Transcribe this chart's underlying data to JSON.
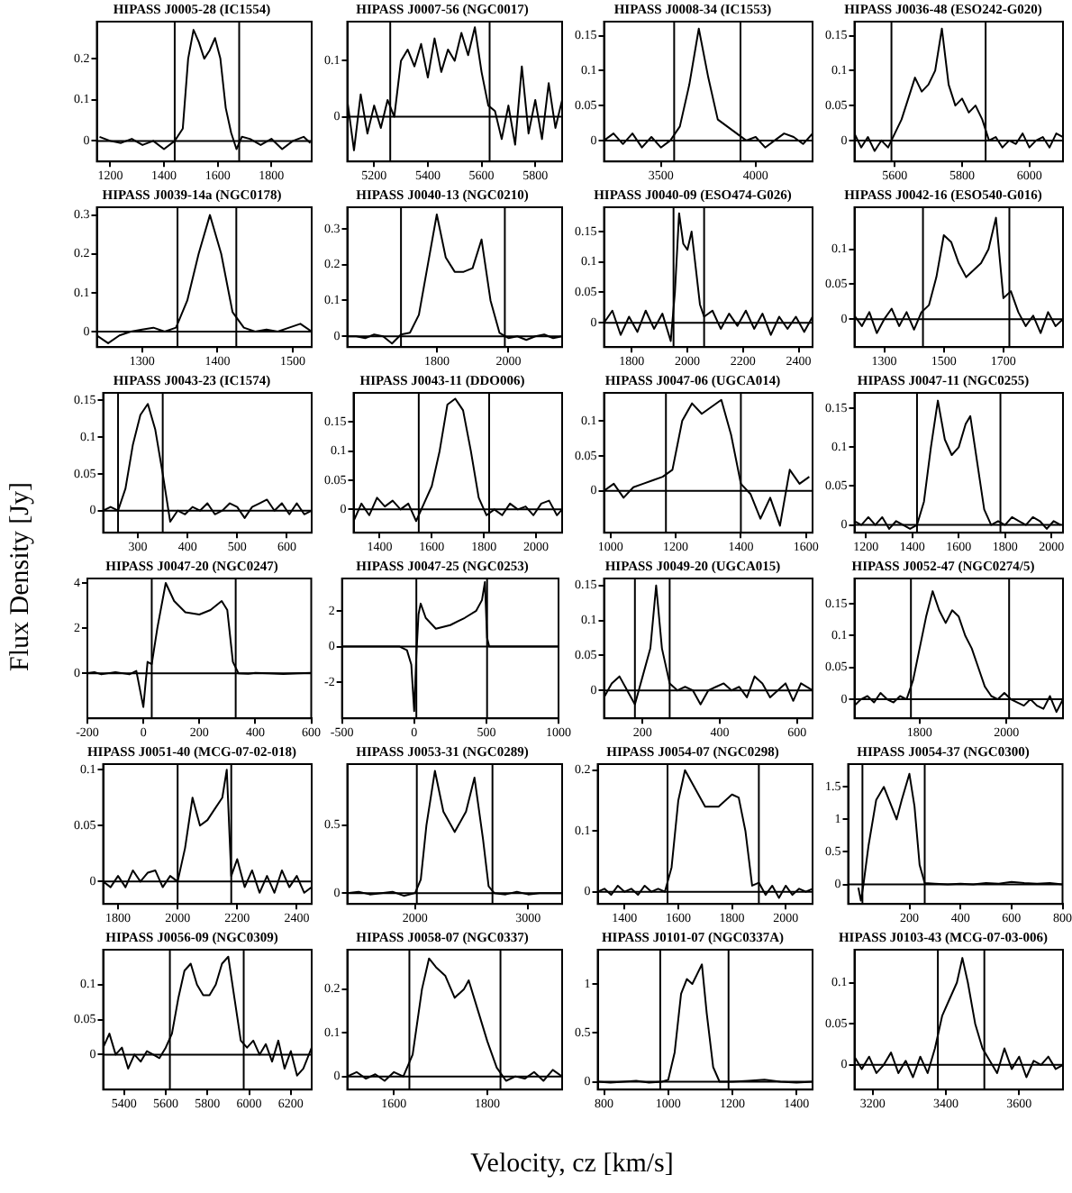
{
  "chart_data": [
    {
      "type": "line",
      "title": "HIPASS J0005-28 (IC1554)",
      "color": "#000000",
      "xlim": [
        1150,
        1950
      ],
      "xticks": [
        1200,
        1400,
        1600,
        1800
      ],
      "ylim": [
        -0.05,
        0.29
      ],
      "yticks": [
        0,
        0.1,
        0.2
      ],
      "grid": false,
      "legend": false,
      "ref_lines": [
        {
          "axis": "x",
          "value": 1440
        },
        {
          "axis": "x",
          "value": 1680
        },
        {
          "axis": "y",
          "value": 0
        }
      ],
      "x": [
        1160,
        1200,
        1240,
        1280,
        1320,
        1360,
        1400,
        1440,
        1470,
        1490,
        1510,
        1530,
        1550,
        1570,
        1590,
        1610,
        1630,
        1650,
        1670,
        1690,
        1720,
        1760,
        1800,
        1840,
        1880,
        1920,
        1945
      ],
      "values": [
        0.01,
        0,
        -0.005,
        0.005,
        -0.01,
        0,
        -0.02,
        0,
        0.03,
        0.2,
        0.27,
        0.24,
        0.2,
        0.22,
        0.25,
        0.2,
        0.08,
        0.02,
        -0.02,
        0.01,
        0.005,
        -0.01,
        0.005,
        -0.02,
        0,
        0.01,
        -0.005
      ]
    },
    {
      "type": "line",
      "title": "HIPASS J0007-56 (NGC0017)",
      "color": "#000000",
      "xlim": [
        5100,
        5900
      ],
      "xticks": [
        5200,
        5400,
        5600,
        5800
      ],
      "ylim": [
        -0.08,
        0.17
      ],
      "yticks": [
        0,
        0.1
      ],
      "grid": false,
      "legend": false,
      "ref_lines": [
        {
          "axis": "x",
          "value": 5260
        },
        {
          "axis": "x",
          "value": 5630
        },
        {
          "axis": "y",
          "value": 0
        }
      ],
      "x": [
        5100,
        5125,
        5150,
        5175,
        5200,
        5225,
        5250,
        5275,
        5300,
        5325,
        5350,
        5375,
        5400,
        5425,
        5450,
        5475,
        5500,
        5525,
        5550,
        5575,
        5600,
        5625,
        5650,
        5675,
        5700,
        5725,
        5750,
        5775,
        5800,
        5825,
        5850,
        5875,
        5900
      ],
      "values": [
        0.03,
        -0.06,
        0.04,
        -0.03,
        0.02,
        -0.02,
        0.03,
        0,
        0.1,
        0.12,
        0.09,
        0.13,
        0.07,
        0.14,
        0.08,
        0.12,
        0.1,
        0.15,
        0.11,
        0.16,
        0.08,
        0.02,
        0.01,
        -0.04,
        0.02,
        -0.05,
        0.09,
        -0.03,
        0.03,
        -0.04,
        0.06,
        -0.02,
        0.03
      ]
    },
    {
      "type": "line",
      "title": "HIPASS J0008-34 (IC1553)",
      "color": "#000000",
      "xlim": [
        3200,
        4300
      ],
      "xticks": [
        3500,
        4000
      ],
      "ylim": [
        -0.03,
        0.17
      ],
      "yticks": [
        0,
        0.05,
        0.1,
        0.15
      ],
      "grid": false,
      "legend": false,
      "ref_lines": [
        {
          "axis": "x",
          "value": 3570
        },
        {
          "axis": "x",
          "value": 3920
        },
        {
          "axis": "y",
          "value": 0
        }
      ],
      "x": [
        3200,
        3250,
        3300,
        3350,
        3400,
        3450,
        3500,
        3550,
        3600,
        3650,
        3700,
        3750,
        3800,
        3850,
        3900,
        3950,
        4000,
        4050,
        4100,
        4150,
        4200,
        4250,
        4300
      ],
      "values": [
        0,
        0.01,
        -0.005,
        0.01,
        -0.01,
        0.005,
        -0.01,
        0,
        0.02,
        0.08,
        0.16,
        0.09,
        0.03,
        0.02,
        0.01,
        0,
        0.005,
        -0.01,
        0,
        0.01,
        0.005,
        -0.005,
        0.01
      ]
    },
    {
      "type": "line",
      "title": "HIPASS J0036-48 (ESO242-G020)",
      "color": "#000000",
      "xlim": [
        5480,
        6100
      ],
      "xticks": [
        5600,
        5800,
        6000
      ],
      "ylim": [
        -0.03,
        0.17
      ],
      "yticks": [
        0,
        0.05,
        0.1,
        0.15
      ],
      "grid": false,
      "legend": false,
      "ref_lines": [
        {
          "axis": "x",
          "value": 5590
        },
        {
          "axis": "x",
          "value": 5870
        },
        {
          "axis": "y",
          "value": 0
        }
      ],
      "x": [
        5480,
        5500,
        5520,
        5540,
        5560,
        5580,
        5600,
        5620,
        5640,
        5660,
        5680,
        5700,
        5720,
        5740,
        5760,
        5780,
        5800,
        5820,
        5840,
        5860,
        5880,
        5900,
        5920,
        5940,
        5960,
        5980,
        6000,
        6020,
        6040,
        6060,
        6080,
        6100
      ],
      "values": [
        0.01,
        -0.01,
        0.005,
        -0.015,
        0,
        -0.01,
        0.01,
        0.03,
        0.06,
        0.09,
        0.07,
        0.08,
        0.1,
        0.16,
        0.08,
        0.05,
        0.06,
        0.04,
        0.05,
        0.03,
        0,
        0.005,
        -0.01,
        0,
        -0.005,
        0.01,
        -0.01,
        0,
        0.005,
        -0.01,
        0.01,
        0.005
      ]
    },
    {
      "type": "line",
      "title": "HIPASS J0039-14a (NGC0178)",
      "color": "#000000",
      "xlim": [
        1240,
        1525
      ],
      "xticks": [
        1300,
        1400,
        1500
      ],
      "ylim": [
        -0.04,
        0.32
      ],
      "yticks": [
        0,
        0.1,
        0.2,
        0.3
      ],
      "grid": false,
      "legend": false,
      "ref_lines": [
        {
          "axis": "x",
          "value": 1347
        },
        {
          "axis": "x",
          "value": 1425
        },
        {
          "axis": "y",
          "value": 0
        }
      ],
      "x": [
        1240,
        1255,
        1270,
        1285,
        1300,
        1315,
        1330,
        1345,
        1360,
        1375,
        1390,
        1405,
        1420,
        1435,
        1450,
        1465,
        1480,
        1495,
        1510,
        1525
      ],
      "values": [
        -0.01,
        -0.03,
        -0.01,
        0,
        0.005,
        0.01,
        0,
        0.01,
        0.08,
        0.2,
        0.3,
        0.2,
        0.05,
        0.01,
        0,
        0.005,
        0,
        0.01,
        0.02,
        0
      ]
    },
    {
      "type": "line",
      "title": "HIPASS J0040-13 (NGC0210)",
      "color": "#000000",
      "xlim": [
        1550,
        2150
      ],
      "xticks": [
        1800,
        2000
      ],
      "ylim": [
        -0.03,
        0.36
      ],
      "yticks": [
        0,
        0.1,
        0.2,
        0.3
      ],
      "grid": false,
      "legend": false,
      "ref_lines": [
        {
          "axis": "x",
          "value": 1700
        },
        {
          "axis": "x",
          "value": 1990
        },
        {
          "axis": "y",
          "value": 0
        }
      ],
      "x": [
        1550,
        1575,
        1600,
        1625,
        1650,
        1675,
        1700,
        1725,
        1750,
        1775,
        1800,
        1825,
        1850,
        1875,
        1900,
        1925,
        1950,
        1975,
        2000,
        2025,
        2050,
        2075,
        2100,
        2125,
        2150
      ],
      "values": [
        0,
        0,
        -0.005,
        0.005,
        0,
        -0.02,
        0.005,
        0.01,
        0.06,
        0.2,
        0.34,
        0.22,
        0.18,
        0.18,
        0.19,
        0.27,
        0.1,
        0.01,
        -0.005,
        0,
        -0.01,
        0,
        0.005,
        -0.005,
        0
      ]
    },
    {
      "type": "line",
      "title": "HIPASS J0040-09 (ESO474-G026)",
      "color": "#000000",
      "xlim": [
        1700,
        2450
      ],
      "xticks": [
        1800,
        2000,
        2200,
        2400
      ],
      "ylim": [
        -0.04,
        0.19
      ],
      "yticks": [
        0,
        0.05,
        0.1,
        0.15
      ],
      "grid": false,
      "legend": false,
      "ref_lines": [
        {
          "axis": "x",
          "value": 1950
        },
        {
          "axis": "x",
          "value": 2060
        },
        {
          "axis": "y",
          "value": 0
        }
      ],
      "x": [
        1700,
        1730,
        1760,
        1790,
        1820,
        1850,
        1880,
        1910,
        1940,
        1955,
        1970,
        1985,
        2000,
        2015,
        2030,
        2045,
        2060,
        2090,
        2120,
        2150,
        2180,
        2210,
        2240,
        2270,
        2300,
        2330,
        2360,
        2390,
        2420,
        2450
      ],
      "values": [
        0,
        0.02,
        -0.02,
        0.01,
        -0.015,
        0.02,
        -0.01,
        0.015,
        -0.03,
        0.05,
        0.18,
        0.13,
        0.12,
        0.15,
        0.09,
        0.03,
        0.01,
        0.02,
        -0.01,
        0.015,
        -0.005,
        0.02,
        -0.01,
        0.015,
        -0.02,
        0.01,
        -0.01,
        0.01,
        -0.015,
        0.01
      ]
    },
    {
      "type": "line",
      "title": "HIPASS J0042-16 (ESO540-G016)",
      "color": "#000000",
      "xlim": [
        1200,
        1900
      ],
      "xticks": [
        1300,
        1500,
        1700
      ],
      "ylim": [
        -0.04,
        0.16
      ],
      "yticks": [
        0,
        0.05,
        0.1
      ],
      "grid": false,
      "legend": false,
      "ref_lines": [
        {
          "axis": "x",
          "value": 1430
        },
        {
          "axis": "x",
          "value": 1720
        },
        {
          "axis": "y",
          "value": 0
        }
      ],
      "x": [
        1200,
        1225,
        1250,
        1275,
        1300,
        1325,
        1350,
        1375,
        1400,
        1425,
        1450,
        1475,
        1500,
        1525,
        1550,
        1575,
        1600,
        1625,
        1650,
        1675,
        1700,
        1725,
        1750,
        1775,
        1800,
        1825,
        1850,
        1875,
        1900
      ],
      "values": [
        0.005,
        -0.01,
        0.01,
        -0.02,
        0,
        0.015,
        -0.01,
        0.01,
        -0.015,
        0.01,
        0.02,
        0.06,
        0.12,
        0.11,
        0.08,
        0.06,
        0.07,
        0.08,
        0.1,
        0.145,
        0.03,
        0.04,
        0.01,
        -0.01,
        0.005,
        -0.02,
        0.01,
        -0.01,
        0
      ]
    },
    {
      "type": "line",
      "title": "HIPASS J0043-23 (IC1574)",
      "color": "#000000",
      "xlim": [
        230,
        650
      ],
      "xticks": [
        300,
        400,
        500,
        600
      ],
      "ylim": [
        -0.03,
        0.16
      ],
      "yticks": [
        0,
        0.05,
        0.1,
        0.15
      ],
      "grid": false,
      "legend": false,
      "ref_lines": [
        {
          "axis": "x",
          "value": 260
        },
        {
          "axis": "x",
          "value": 350
        },
        {
          "axis": "y",
          "value": 0
        }
      ],
      "x": [
        230,
        245,
        260,
        275,
        290,
        305,
        320,
        335,
        350,
        365,
        380,
        395,
        410,
        425,
        440,
        455,
        470,
        485,
        500,
        515,
        530,
        545,
        560,
        575,
        590,
        605,
        620,
        635,
        650
      ],
      "values": [
        0,
        0.005,
        0,
        0.03,
        0.09,
        0.13,
        0.145,
        0.11,
        0.05,
        -0.015,
        0,
        -0.005,
        0.005,
        0,
        0.01,
        -0.005,
        0,
        0.01,
        0.005,
        -0.01,
        0.005,
        0.01,
        0.015,
        0,
        0.01,
        -0.005,
        0.01,
        -0.005,
        0
      ]
    },
    {
      "type": "line",
      "title": "HIPASS J0043-11 (DDO006)",
      "color": "#000000",
      "xlim": [
        1300,
        2100
      ],
      "xticks": [
        1400,
        1600,
        1800,
        2000
      ],
      "ylim": [
        -0.04,
        0.2
      ],
      "yticks": [
        0,
        0.05,
        0.1,
        0.15
      ],
      "grid": false,
      "legend": false,
      "ref_lines": [
        {
          "axis": "x",
          "value": 1550
        },
        {
          "axis": "x",
          "value": 1820
        },
        {
          "axis": "y",
          "value": 0
        }
      ],
      "x": [
        1300,
        1330,
        1360,
        1390,
        1420,
        1450,
        1480,
        1510,
        1540,
        1570,
        1600,
        1630,
        1660,
        1690,
        1720,
        1750,
        1780,
        1810,
        1840,
        1870,
        1900,
        1930,
        1960,
        1990,
        2020,
        2050,
        2080,
        2100
      ],
      "values": [
        -0.02,
        0.01,
        -0.01,
        0.02,
        0.005,
        0.015,
        0,
        0.01,
        -0.02,
        0.01,
        0.04,
        0.1,
        0.18,
        0.19,
        0.17,
        0.1,
        0.02,
        -0.01,
        0,
        -0.01,
        0.01,
        0,
        0.005,
        -0.01,
        0.01,
        0.015,
        -0.01,
        0
      ]
    },
    {
      "type": "line",
      "title": "HIPASS J0047-06 (UGCA014)",
      "color": "#000000",
      "xlim": [
        980,
        1620
      ],
      "xticks": [
        1000,
        1200,
        1400,
        1600
      ],
      "ylim": [
        -0.06,
        0.14
      ],
      "yticks": [
        0,
        0.05,
        0.1
      ],
      "grid": false,
      "legend": false,
      "ref_lines": [
        {
          "axis": "x",
          "value": 1170
        },
        {
          "axis": "x",
          "value": 1400
        },
        {
          "axis": "y",
          "value": 0
        }
      ],
      "x": [
        980,
        1010,
        1040,
        1070,
        1100,
        1130,
        1160,
        1190,
        1220,
        1250,
        1280,
        1310,
        1340,
        1370,
        1400,
        1430,
        1460,
        1490,
        1520,
        1550,
        1580,
        1610
      ],
      "values": [
        0,
        0.01,
        -0.01,
        0.005,
        0.01,
        0.015,
        0.02,
        0.03,
        0.1,
        0.125,
        0.11,
        0.12,
        0.13,
        0.08,
        0.01,
        -0.005,
        -0.04,
        -0.01,
        -0.05,
        0.03,
        0.01,
        0.02
      ]
    },
    {
      "type": "line",
      "title": "HIPASS J0047-11 (NGC0255)",
      "color": "#000000",
      "xlim": [
        1150,
        2050
      ],
      "xticks": [
        1200,
        1400,
        1600,
        1800,
        2000
      ],
      "ylim": [
        -0.01,
        0.17
      ],
      "yticks": [
        0,
        0.05,
        0.1,
        0.15
      ],
      "grid": false,
      "legend": false,
      "ref_lines": [
        {
          "axis": "x",
          "value": 1420
        },
        {
          "axis": "x",
          "value": 1780
        },
        {
          "axis": "y",
          "value": 0
        }
      ],
      "x": [
        1150,
        1180,
        1210,
        1240,
        1270,
        1300,
        1330,
        1360,
        1390,
        1420,
        1450,
        1480,
        1510,
        1540,
        1570,
        1600,
        1630,
        1650,
        1680,
        1710,
        1740,
        1770,
        1800,
        1830,
        1860,
        1890,
        1920,
        1950,
        1980,
        2010,
        2040
      ],
      "values": [
        0.005,
        0,
        0.01,
        0,
        0.01,
        -0.005,
        0.005,
        0,
        -0.005,
        0,
        0.03,
        0.1,
        0.16,
        0.11,
        0.09,
        0.1,
        0.13,
        0.14,
        0.08,
        0.02,
        0,
        0.005,
        0,
        0.01,
        0.005,
        0,
        0.01,
        0.005,
        -0.005,
        0.005,
        0
      ]
    },
    {
      "type": "line",
      "title": "HIPASS J0047-20 (NGC0247)",
      "ylabel": "Flux Density  [Jy]",
      "color": "#000000",
      "xlim": [
        -200,
        600
      ],
      "xticks": [
        -200,
        0,
        200,
        400,
        600
      ],
      "ylim": [
        -2,
        4.2
      ],
      "yticks": [
        0,
        2,
        4
      ],
      "grid": false,
      "legend": false,
      "ref_lines": [
        {
          "axis": "x",
          "value": 30
        },
        {
          "axis": "x",
          "value": 330
        },
        {
          "axis": "y",
          "value": 0
        }
      ],
      "x": [
        -200,
        -175,
        -150,
        -125,
        -100,
        -75,
        -50,
        -25,
        0,
        15,
        30,
        50,
        80,
        110,
        150,
        200,
        240,
        280,
        300,
        320,
        340,
        375,
        400,
        450,
        500,
        550,
        600
      ],
      "values": [
        0,
        0.05,
        -0.05,
        0,
        0.05,
        0,
        -0.05,
        0.1,
        -1.5,
        0.5,
        0.4,
        2,
        4,
        3.2,
        2.7,
        2.6,
        2.8,
        3.2,
        2.8,
        0.5,
        0,
        -0.02,
        0.02,
        0,
        -0.03,
        0,
        0.02
      ]
    },
    {
      "type": "line",
      "title": "HIPASS J0047-25 (NGC0253)",
      "color": "#000000",
      "xlim": [
        -500,
        1000
      ],
      "xticks": [
        -500,
        0,
        500,
        1000
      ],
      "ylim": [
        -4,
        3.8
      ],
      "yticks": [
        -2,
        0,
        2
      ],
      "grid": false,
      "legend": false,
      "ref_lines": [
        {
          "axis": "x",
          "value": 15
        },
        {
          "axis": "x",
          "value": 505
        },
        {
          "axis": "y",
          "value": 0
        }
      ],
      "x": [
        -500,
        -450,
        -400,
        -300,
        -200,
        -100,
        -50,
        -20,
        0,
        15,
        30,
        45,
        80,
        150,
        250,
        350,
        430,
        470,
        490,
        505,
        520,
        560,
        650,
        750,
        850,
        1000
      ],
      "values": [
        0,
        0,
        0,
        0,
        0,
        0,
        -0.2,
        -1,
        -3.6,
        -0.5,
        1.8,
        2.4,
        1.6,
        1,
        1.2,
        1.6,
        2,
        2.6,
        3.6,
        0.5,
        0,
        0,
        0,
        0,
        0,
        0
      ]
    },
    {
      "type": "line",
      "title": "HIPASS J0049-20 (UGCA015)",
      "color": "#000000",
      "xlim": [
        100,
        640
      ],
      "xticks": [
        200,
        400,
        600
      ],
      "ylim": [
        -0.04,
        0.16
      ],
      "yticks": [
        0,
        0.05,
        0.1,
        0.15
      ],
      "grid": false,
      "legend": false,
      "ref_lines": [
        {
          "axis": "x",
          "value": 180
        },
        {
          "axis": "x",
          "value": 270
        },
        {
          "axis": "y",
          "value": 0
        }
      ],
      "x": [
        100,
        120,
        140,
        160,
        180,
        200,
        220,
        235,
        250,
        270,
        290,
        310,
        330,
        350,
        370,
        390,
        410,
        430,
        450,
        470,
        490,
        510,
        530,
        550,
        570,
        590,
        610,
        640
      ],
      "values": [
        -0.01,
        0.01,
        0.02,
        0,
        -0.02,
        0.02,
        0.06,
        0.15,
        0.06,
        0.01,
        0,
        0.005,
        0,
        -0.02,
        0,
        0.005,
        0.01,
        0,
        0.005,
        -0.01,
        0.02,
        0.01,
        -0.01,
        0,
        0.01,
        -0.015,
        0.01,
        0
      ]
    },
    {
      "type": "line",
      "title": "HIPASS J0052-47 (NGC0274/5)",
      "color": "#000000",
      "xlim": [
        1650,
        2130
      ],
      "xticks": [
        1800,
        2000
      ],
      "ylim": [
        -0.03,
        0.19
      ],
      "yticks": [
        0,
        0.05,
        0.1,
        0.15
      ],
      "grid": false,
      "legend": false,
      "ref_lines": [
        {
          "axis": "x",
          "value": 1780
        },
        {
          "axis": "x",
          "value": 2006
        },
        {
          "axis": "y",
          "value": 0
        }
      ],
      "x": [
        1650,
        1665,
        1680,
        1695,
        1710,
        1725,
        1740,
        1755,
        1770,
        1785,
        1800,
        1815,
        1830,
        1845,
        1860,
        1875,
        1890,
        1905,
        1920,
        1935,
        1950,
        1965,
        1980,
        1995,
        2010,
        2025,
        2040,
        2055,
        2070,
        2085,
        2100,
        2115,
        2130
      ],
      "values": [
        -0.01,
        0,
        0.005,
        -0.005,
        0.01,
        0,
        -0.005,
        0.005,
        0,
        0.03,
        0.08,
        0.13,
        0.17,
        0.14,
        0.12,
        0.14,
        0.13,
        0.1,
        0.08,
        0.05,
        0.02,
        0.005,
        0,
        0.01,
        0,
        -0.005,
        -0.01,
        0,
        -0.01,
        -0.015,
        0.005,
        -0.02,
        0
      ]
    },
    {
      "type": "line",
      "title": "HIPASS J0051-40 (MCG-07-02-018)",
      "color": "#000000",
      "xlim": [
        1750,
        2450
      ],
      "xticks": [
        1800,
        2000,
        2200,
        2400
      ],
      "ylim": [
        -0.02,
        0.105
      ],
      "yticks": [
        0,
        0.05,
        0.1
      ],
      "grid": false,
      "legend": false,
      "ref_lines": [
        {
          "axis": "x",
          "value": 2000
        },
        {
          "axis": "x",
          "value": 2180
        },
        {
          "axis": "y",
          "value": 0
        }
      ],
      "x": [
        1750,
        1775,
        1800,
        1825,
        1850,
        1875,
        1900,
        1925,
        1950,
        1975,
        2000,
        2025,
        2050,
        2075,
        2100,
        2125,
        2150,
        2165,
        2180,
        2200,
        2225,
        2250,
        2275,
        2300,
        2325,
        2350,
        2375,
        2400,
        2425,
        2450
      ],
      "values": [
        0,
        -0.005,
        0.005,
        -0.005,
        0.01,
        0,
        0.008,
        0.01,
        -0.005,
        0.005,
        0,
        0.03,
        0.075,
        0.05,
        0.055,
        0.065,
        0.075,
        0.1,
        0.005,
        0.02,
        -0.005,
        0.01,
        -0.01,
        0.005,
        -0.01,
        0.01,
        -0.005,
        0.005,
        -0.01,
        -0.005
      ]
    },
    {
      "type": "line",
      "title": "HIPASS J0053-31 (NGC0289)",
      "color": "#000000",
      "xlim": [
        1400,
        3300
      ],
      "xticks": [
        2000,
        3000
      ],
      "ylim": [
        -0.08,
        0.95
      ],
      "yticks": [
        0,
        0.5
      ],
      "grid": false,
      "legend": false,
      "ref_lines": [
        {
          "axis": "x",
          "value": 2015
        },
        {
          "axis": "x",
          "value": 2684
        },
        {
          "axis": "y",
          "value": 0
        }
      ],
      "x": [
        1400,
        1500,
        1600,
        1700,
        1800,
        1900,
        2000,
        2050,
        2100,
        2175,
        2250,
        2350,
        2450,
        2525,
        2600,
        2650,
        2700,
        2800,
        2900,
        3000,
        3100,
        3200,
        3300
      ],
      "values": [
        0,
        0.01,
        -0.01,
        0,
        0.01,
        -0.02,
        0,
        0.1,
        0.5,
        0.9,
        0.6,
        0.45,
        0.6,
        0.85,
        0.4,
        0.05,
        0,
        -0.01,
        0.01,
        -0.01,
        0,
        0,
        0
      ]
    },
    {
      "type": "line",
      "title": "HIPASS J0054-07 (NGC0298)",
      "color": "#000000",
      "xlim": [
        1300,
        2100
      ],
      "xticks": [
        1400,
        1600,
        1800,
        2000
      ],
      "ylim": [
        -0.02,
        0.21
      ],
      "yticks": [
        0,
        0.1,
        0.2
      ],
      "grid": false,
      "legend": false,
      "ref_lines": [
        {
          "axis": "x",
          "value": 1560
        },
        {
          "axis": "x",
          "value": 1900
        },
        {
          "axis": "y",
          "value": 0
        }
      ],
      "x": [
        1300,
        1325,
        1350,
        1375,
        1400,
        1425,
        1450,
        1475,
        1500,
        1525,
        1550,
        1575,
        1600,
        1625,
        1650,
        1675,
        1700,
        1725,
        1750,
        1775,
        1800,
        1825,
        1850,
        1875,
        1900,
        1925,
        1950,
        1975,
        2000,
        2025,
        2050,
        2075,
        2100
      ],
      "values": [
        0,
        0.005,
        -0.005,
        0.01,
        0,
        0.005,
        -0.005,
        0.01,
        0,
        0.005,
        0,
        0.04,
        0.15,
        0.2,
        0.18,
        0.16,
        0.14,
        0.14,
        0.14,
        0.15,
        0.16,
        0.155,
        0.1,
        0.01,
        0.015,
        -0.005,
        0.01,
        -0.01,
        0.01,
        -0.005,
        0.005,
        0,
        0.005
      ]
    },
    {
      "type": "line",
      "title": "HIPASS J0054-37 (NGC0300)",
      "color": "#000000",
      "xlim": [
        -40,
        800
      ],
      "xticks": [
        200,
        400,
        600,
        800
      ],
      "ylim": [
        -0.3,
        1.85
      ],
      "yticks": [
        0,
        0.5,
        1,
        1.5
      ],
      "grid": false,
      "legend": false,
      "ref_lines": [
        {
          "axis": "x",
          "value": 16
        },
        {
          "axis": "x",
          "value": 260
        },
        {
          "axis": "y",
          "value": 0
        }
      ],
      "x": [
        0,
        10,
        20,
        40,
        70,
        100,
        130,
        150,
        170,
        200,
        220,
        240,
        260,
        300,
        350,
        400,
        450,
        500,
        550,
        600,
        650,
        700,
        750,
        800
      ],
      "values": [
        -0.05,
        -0.25,
        0,
        0.6,
        1.3,
        1.5,
        1.2,
        1,
        1.3,
        1.7,
        1.2,
        0.3,
        0.02,
        0.01,
        0,
        0.01,
        0,
        0.02,
        0.01,
        0.04,
        0.02,
        0.01,
        0.02,
        0
      ]
    },
    {
      "type": "line",
      "title": "HIPASS J0056-09 (NGC0309)",
      "color": "#000000",
      "xlim": [
        5300,
        6300
      ],
      "xticks": [
        5400,
        5600,
        5800,
        6000,
        6200
      ],
      "ylim": [
        -0.05,
        0.15
      ],
      "yticks": [
        0,
        0.05,
        0.1
      ],
      "grid": false,
      "legend": false,
      "ref_lines": [
        {
          "axis": "x",
          "value": 5620
        },
        {
          "axis": "x",
          "value": 5974
        },
        {
          "axis": "y",
          "value": 0
        }
      ],
      "x": [
        5300,
        5330,
        5360,
        5390,
        5420,
        5450,
        5480,
        5510,
        5540,
        5570,
        5600,
        5630,
        5660,
        5690,
        5720,
        5750,
        5780,
        5810,
        5840,
        5870,
        5900,
        5930,
        5960,
        5990,
        6020,
        6050,
        6080,
        6110,
        6140,
        6170,
        6200,
        6230,
        6260,
        6300
      ],
      "values": [
        0.01,
        0.03,
        0,
        0.01,
        -0.02,
        0,
        -0.01,
        0.005,
        0,
        -0.005,
        0.01,
        0.03,
        0.08,
        0.12,
        0.13,
        0.1,
        0.085,
        0.085,
        0.1,
        0.13,
        0.14,
        0.08,
        0.02,
        0.01,
        0.02,
        0,
        0.015,
        -0.01,
        0.02,
        -0.02,
        0.005,
        -0.03,
        -0.02,
        0.01
      ]
    },
    {
      "type": "line",
      "title": "HIPASS J0058-07 (NGC0337)",
      "xlabel": "Velocity, cz [km/s]",
      "color": "#000000",
      "xlim": [
        1500,
        1960
      ],
      "xticks": [
        1600,
        1800
      ],
      "ylim": [
        -0.03,
        0.29
      ],
      "yticks": [
        0,
        0.1,
        0.2
      ],
      "grid": false,
      "legend": false,
      "ref_lines": [
        {
          "axis": "x",
          "value": 1633
        },
        {
          "axis": "x",
          "value": 1828
        },
        {
          "axis": "y",
          "value": 0
        }
      ],
      "x": [
        1500,
        1520,
        1540,
        1560,
        1580,
        1600,
        1620,
        1640,
        1660,
        1675,
        1690,
        1710,
        1730,
        1750,
        1760,
        1780,
        1800,
        1820,
        1840,
        1860,
        1880,
        1900,
        1920,
        1940,
        1960
      ],
      "values": [
        0,
        0.01,
        -0.005,
        0.005,
        -0.01,
        0.01,
        0,
        0.05,
        0.2,
        0.27,
        0.25,
        0.23,
        0.18,
        0.2,
        0.22,
        0.15,
        0.08,
        0.02,
        -0.01,
        0,
        -0.005,
        0.01,
        -0.01,
        0.015,
        0
      ]
    },
    {
      "type": "line",
      "title": "HIPASS J0101-07 (NGC0337A)",
      "color": "#000000",
      "xlim": [
        780,
        1450
      ],
      "xticks": [
        800,
        1000,
        1200,
        1400
      ],
      "ylim": [
        -0.08,
        1.35
      ],
      "yticks": [
        0,
        0.5,
        1
      ],
      "grid": false,
      "legend": false,
      "ref_lines": [
        {
          "axis": "x",
          "value": 975
        },
        {
          "axis": "x",
          "value": 1188
        },
        {
          "axis": "y",
          "value": 0
        }
      ],
      "x": [
        780,
        820,
        860,
        900,
        940,
        980,
        1000,
        1020,
        1040,
        1058,
        1075,
        1090,
        1105,
        1120,
        1140,
        1160,
        1200,
        1250,
        1300,
        1350,
        1400,
        1450
      ],
      "values": [
        0,
        -0.01,
        0,
        0.01,
        -0.01,
        0,
        0.02,
        0.3,
        0.9,
        1.05,
        1,
        1.1,
        1.2,
        0.7,
        0.15,
        0,
        0,
        0.01,
        0.02,
        0,
        -0.01,
        0
      ]
    },
    {
      "type": "line",
      "title": "HIPASS J0103-43 (MCG-07-03-006)",
      "color": "#000000",
      "xlim": [
        3150,
        3720
      ],
      "xticks": [
        3200,
        3400,
        3600
      ],
      "ylim": [
        -0.03,
        0.14
      ],
      "yticks": [
        0,
        0.05,
        0.1
      ],
      "grid": false,
      "legend": false,
      "ref_lines": [
        {
          "axis": "x",
          "value": 3378
        },
        {
          "axis": "x",
          "value": 3505
        },
        {
          "axis": "y",
          "value": 0
        }
      ],
      "x": [
        3150,
        3170,
        3190,
        3210,
        3230,
        3250,
        3270,
        3290,
        3310,
        3330,
        3350,
        3370,
        3390,
        3410,
        3430,
        3445,
        3460,
        3480,
        3500,
        3520,
        3540,
        3560,
        3580,
        3600,
        3620,
        3640,
        3660,
        3680,
        3700,
        3720
      ],
      "values": [
        0.01,
        -0.005,
        0.01,
        -0.01,
        0,
        0.015,
        -0.01,
        0.005,
        -0.015,
        0.01,
        -0.01,
        0.02,
        0.06,
        0.08,
        0.1,
        0.13,
        0.1,
        0.05,
        0.02,
        0.005,
        -0.01,
        0.02,
        -0.005,
        0.01,
        -0.015,
        0.005,
        0,
        0.01,
        -0.005,
        0
      ]
    }
  ]
}
